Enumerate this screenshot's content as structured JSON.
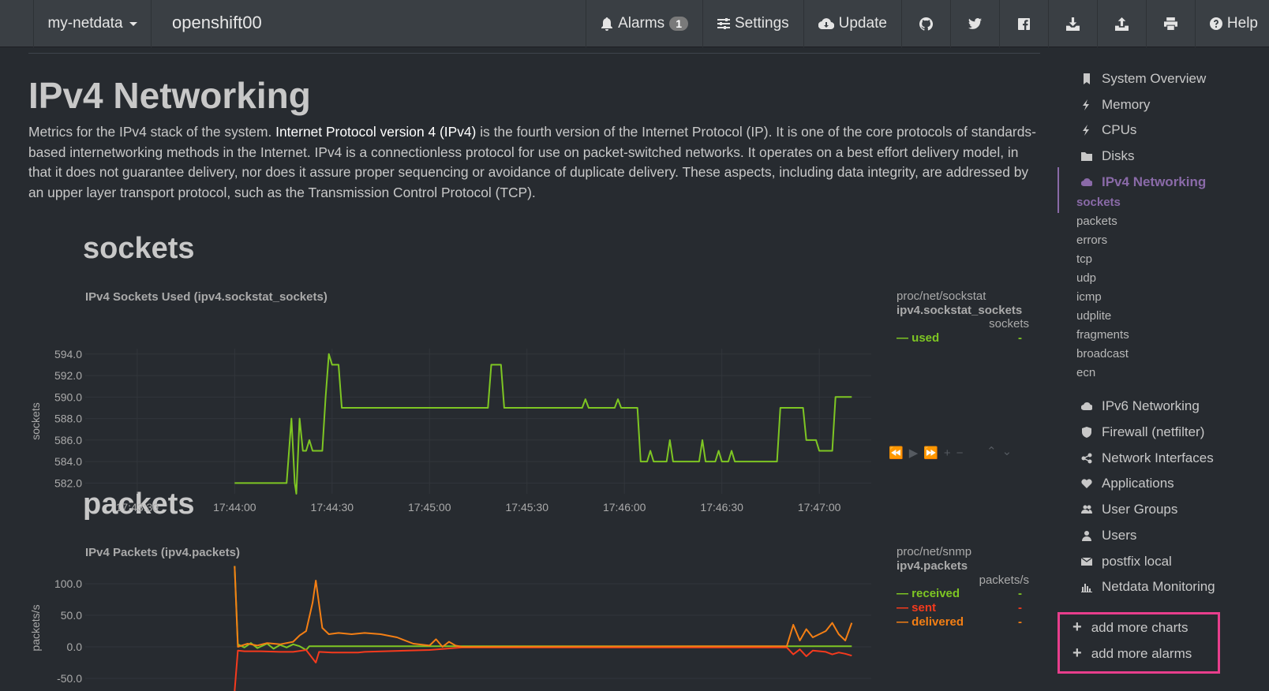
{
  "navbar": {
    "brand": "my-netdata",
    "hostname": "openshift00",
    "alarms_label": "Alarms",
    "alarms_count": "1",
    "settings_label": "Settings",
    "update_label": "Update",
    "help_label": "Help"
  },
  "page": {
    "title": "IPv4 Networking",
    "desc_before": "Metrics for the IPv4 stack of the system. ",
    "desc_highlight": "Internet Protocol version 4 (IPv4)",
    "desc_after": " is the fourth version of the Internet Protocol (IP). It is one of the core protocols of standards-based internetworking methods in the Internet. IPv4 is a connectionless protocol for use on packet-switched networks. It operates on a best effort delivery model, in that it does not guarantee delivery, nor does it assure proper sequencing or avoidance of duplicate delivery. These aspects, including data integrity, are addressed by an upper layer transport protocol, such as the Transmission Control Protocol (TCP).",
    "section_sockets": "sockets",
    "section_packets": "packets"
  },
  "sidebar": {
    "items": [
      {
        "label": "System Overview",
        "icon": "bookmark-icon"
      },
      {
        "label": "Memory",
        "icon": "bolt-icon"
      },
      {
        "label": "CPUs",
        "icon": "bolt-icon"
      },
      {
        "label": "Disks",
        "icon": "folder-icon"
      },
      {
        "label": "IPv4 Networking",
        "icon": "cloud-icon"
      },
      {
        "label": "IPv6 Networking",
        "icon": "cloud-icon"
      },
      {
        "label": "Firewall (netfilter)",
        "icon": "shield-icon"
      },
      {
        "label": "Network Interfaces",
        "icon": "share-icon"
      },
      {
        "label": "Applications",
        "icon": "heartbeat-icon"
      },
      {
        "label": "User Groups",
        "icon": "users-icon"
      },
      {
        "label": "Users",
        "icon": "user-icon"
      },
      {
        "label": "postfix local",
        "icon": "envelope-icon"
      },
      {
        "label": "Netdata Monitoring",
        "icon": "bar-chart-icon"
      }
    ],
    "subitems": [
      "sockets",
      "packets",
      "errors",
      "tcp",
      "udp",
      "icmp",
      "udplite",
      "fragments",
      "broadcast",
      "ecn"
    ],
    "add_charts": "add more charts",
    "add_alarms": "add more alarms"
  },
  "colors": {
    "green": "#7ec623",
    "red": "#f53a1d",
    "orange": "#f47f14",
    "purple": "#8a6aa8",
    "highlight_border": "#e83e8c"
  },
  "chart_data": [
    {
      "type": "line",
      "title": "IPv4 Sockets Used (ipv4.sockstat_sockets)",
      "source": "proc/net/sockstat",
      "id": "ipv4.sockstat_sockets",
      "units": "sockets",
      "ylabel": "sockets",
      "ylim": [
        581,
        594.5
      ],
      "yticks": [
        "594.0",
        "592.0",
        "590.0",
        "588.0",
        "586.0",
        "584.0",
        "582.0"
      ],
      "ytick_values": [
        594,
        592,
        590,
        588,
        586,
        584,
        582
      ],
      "xticks": [
        "17:43:30",
        "17:44:00",
        "17:44:30",
        "17:45:00",
        "17:45:30",
        "17:46:00",
        "17:46:30",
        "17:47:00"
      ],
      "xtick_seconds": [
        0,
        30,
        60,
        90,
        120,
        150,
        180,
        210
      ],
      "xlim_seconds": [
        -16,
        226
      ],
      "series": [
        {
          "name": "used",
          "value_label": "-",
          "color": "#7ec623",
          "points": [
            [
              30,
              582
            ],
            [
              46,
              582
            ],
            [
              47.5,
              588
            ],
            [
              48.5,
              582
            ],
            [
              49,
              581
            ],
            [
              50,
              588
            ],
            [
              51,
              585
            ],
            [
              52,
              585
            ],
            [
              53,
              586
            ],
            [
              54,
              585
            ],
            [
              57,
              585
            ],
            [
              58,
              590
            ],
            [
              59,
              594
            ],
            [
              60,
              593
            ],
            [
              62,
              593
            ],
            [
              63,
              589
            ],
            [
              108,
              589
            ],
            [
              109,
              593
            ],
            [
              112,
              593
            ],
            [
              113,
              589
            ],
            [
              137,
              589
            ],
            [
              138,
              589.8
            ],
            [
              139,
              589
            ],
            [
              147,
              589
            ],
            [
              148,
              589.8
            ],
            [
              149,
              589
            ],
            [
              154,
              589
            ],
            [
              155,
              584
            ],
            [
              157,
              584
            ],
            [
              158,
              585
            ],
            [
              159,
              584
            ],
            [
              163,
              584
            ],
            [
              164,
              586
            ],
            [
              165,
              584
            ],
            [
              173,
              584
            ],
            [
              174,
              586
            ],
            [
              175,
              584
            ],
            [
              178,
              584
            ],
            [
              179,
              585
            ],
            [
              180,
              584
            ],
            [
              182,
              584
            ],
            [
              183,
              585
            ],
            [
              184,
              584
            ],
            [
              197,
              584
            ],
            [
              198,
              589
            ],
            [
              205,
              589
            ],
            [
              206,
              586
            ],
            [
              209,
              586
            ],
            [
              210,
              585
            ],
            [
              214,
              585
            ],
            [
              215,
              590
            ],
            [
              220,
              590
            ]
          ]
        }
      ]
    },
    {
      "type": "line",
      "title": "IPv4 Packets (ipv4.packets)",
      "source": "proc/net/snmp",
      "id": "ipv4.packets",
      "units": "packets/s",
      "ylabel": "packets/s",
      "ylim": [
        -70,
        130
      ],
      "yticks": [
        "100.0",
        "50.0",
        "0.0",
        "-50.0"
      ],
      "ytick_values": [
        100,
        50,
        0,
        -50
      ],
      "xlim_seconds": [
        -16,
        226
      ],
      "series": [
        {
          "name": "received",
          "value_label": "-",
          "color": "#7ec623",
          "points": [
            [
              30,
              128
            ],
            [
              31,
              4
            ],
            [
              33,
              -1
            ],
            [
              35,
              6
            ],
            [
              37,
              -2
            ],
            [
              40,
              5
            ],
            [
              42,
              -3
            ],
            [
              44,
              3
            ],
            [
              46,
              -1
            ],
            [
              48,
              4
            ],
            [
              50,
              1
            ],
            [
              52,
              -5
            ],
            [
              53,
              1
            ],
            [
              56,
              1
            ],
            [
              220,
              1
            ]
          ]
        },
        {
          "name": "sent",
          "value_label": "-",
          "color": "#f53a1d",
          "points": [
            [
              30,
              -70
            ],
            [
              31,
              -6
            ],
            [
              33,
              -7
            ],
            [
              38,
              -7
            ],
            [
              44,
              -8
            ],
            [
              48,
              -8
            ],
            [
              52,
              -5
            ],
            [
              55,
              -25
            ],
            [
              56,
              -8
            ],
            [
              60,
              -9
            ],
            [
              68,
              -9
            ],
            [
              70,
              -8
            ],
            [
              90,
              -5
            ],
            [
              100,
              -1
            ],
            [
              200,
              -1
            ],
            [
              202,
              -12
            ],
            [
              204,
              -4
            ],
            [
              206,
              -15
            ],
            [
              208,
              -6
            ],
            [
              212,
              -8
            ],
            [
              214,
              -12
            ],
            [
              216,
              -9
            ],
            [
              218,
              -11
            ],
            [
              220,
              -14
            ]
          ]
        },
        {
          "name": "delivered",
          "value_label": "-",
          "color": "#f47f14",
          "points": [
            [
              30,
              128
            ],
            [
              31,
              0
            ],
            [
              34,
              5
            ],
            [
              37,
              2
            ],
            [
              40,
              6
            ],
            [
              44,
              4
            ],
            [
              48,
              8
            ],
            [
              50,
              18
            ],
            [
              52,
              25
            ],
            [
              54,
              70
            ],
            [
              55,
              105
            ],
            [
              57,
              30
            ],
            [
              59,
              20
            ],
            [
              62,
              22
            ],
            [
              66,
              20
            ],
            [
              70,
              22
            ],
            [
              75,
              20
            ],
            [
              80,
              15
            ],
            [
              85,
              5
            ],
            [
              90,
              2
            ],
            [
              92,
              12
            ],
            [
              94,
              0
            ],
            [
              96,
              8
            ],
            [
              98,
              2
            ],
            [
              100,
              0
            ],
            [
              200,
              1
            ],
            [
              202,
              35
            ],
            [
              204,
              10
            ],
            [
              206,
              28
            ],
            [
              208,
              15
            ],
            [
              212,
              25
            ],
            [
              214,
              38
            ],
            [
              216,
              20
            ],
            [
              218,
              10
            ],
            [
              220,
              38
            ]
          ]
        }
      ]
    }
  ]
}
